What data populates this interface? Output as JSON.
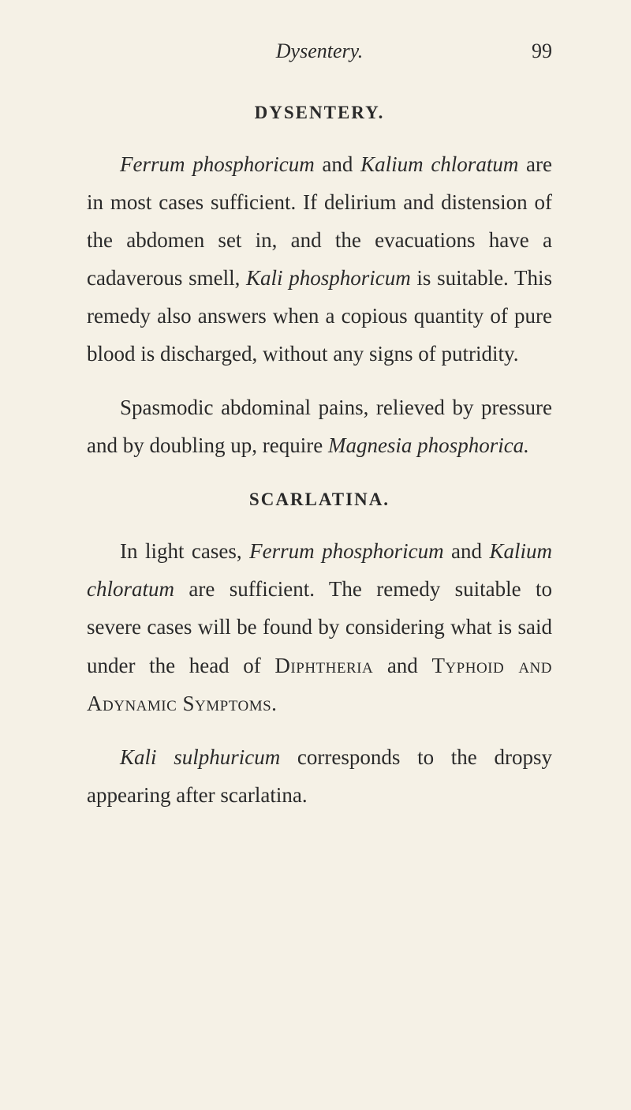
{
  "header": {
    "running_title": "Dysentery.",
    "page_number": "99"
  },
  "sections": [
    {
      "heading": "DYSENTERY.",
      "paragraphs": [
        {
          "segments": [
            {
              "text": "Ferrum phosphoricum",
              "style": "italic"
            },
            {
              "text": " and ",
              "style": "normal"
            },
            {
              "text": "Kalium chloratum",
              "style": "italic"
            },
            {
              "text": " are in most cases sufficient. If delirium and distension of the abdomen set in, and the evacuations have a cadaverous smell, ",
              "style": "normal"
            },
            {
              "text": "Kali phosphoricum",
              "style": "italic"
            },
            {
              "text": " is suitable. This remedy also answers when a copious quantity of pure blood is discharged, without any signs of putridity.",
              "style": "normal"
            }
          ]
        },
        {
          "segments": [
            {
              "text": "Spasmodic abdominal pains, relieved by pressure and by doubling up, require ",
              "style": "normal"
            },
            {
              "text": "Magnesia phosphorica.",
              "style": "italic"
            }
          ]
        }
      ]
    },
    {
      "heading": "SCARLATINA.",
      "paragraphs": [
        {
          "segments": [
            {
              "text": "In light cases, ",
              "style": "normal"
            },
            {
              "text": "Ferrum phosphoricum",
              "style": "italic"
            },
            {
              "text": " and ",
              "style": "normal"
            },
            {
              "text": "Kalium chloratum",
              "style": "italic"
            },
            {
              "text": " are sufficient. The remedy suitable to severe cases will be found by considering what is said under the head of ",
              "style": "normal"
            },
            {
              "text": "Diphtheria",
              "style": "small-caps"
            },
            {
              "text": " and ",
              "style": "normal"
            },
            {
              "text": "Typhoid and Adynamic Symptoms.",
              "style": "small-caps"
            }
          ]
        },
        {
          "segments": [
            {
              "text": "Kali sulphuricum",
              "style": "italic"
            },
            {
              "text": " corresponds to the dropsy appearing after scarlatina.",
              "style": "normal"
            }
          ]
        }
      ]
    }
  ],
  "styling": {
    "background_color": "#f5f1e6",
    "text_color": "#2a2a2a",
    "body_font_size": 27,
    "heading_font_size": 23,
    "header_font_size": 26,
    "line_height": 1.78
  }
}
